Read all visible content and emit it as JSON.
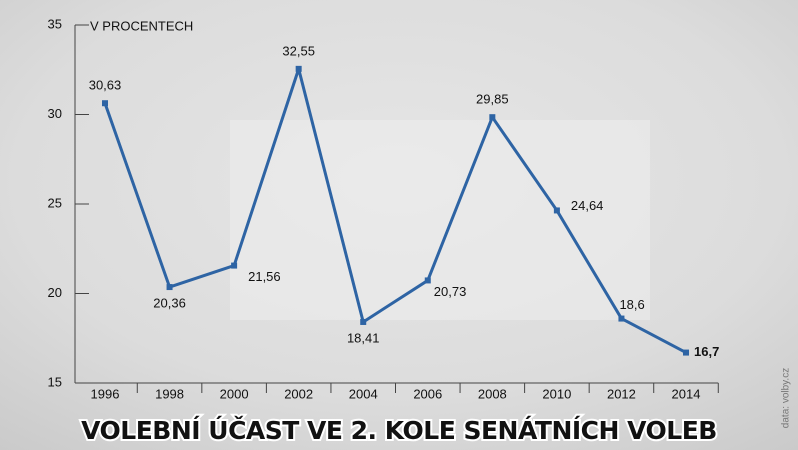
{
  "chart_data": {
    "type": "line",
    "title": "VOLEBNÍ ÚČAST VE 2. KOLE SENÁTNÍCH VOLEB",
    "y_label": "V PROCENTECH",
    "source": "data: volby.cz",
    "categories": [
      "1996",
      "1998",
      "2000",
      "2002",
      "2004",
      "2006",
      "2008",
      "2010",
      "2012",
      "2014"
    ],
    "series": [
      {
        "name": "Volební účast",
        "color": "#2e64a4",
        "values": [
          30.63,
          20.36,
          21.56,
          32.55,
          18.41,
          20.73,
          29.85,
          24.64,
          18.6,
          16.7
        ],
        "value_labels": [
          "30,63",
          "20,36",
          "21,56",
          "32,55",
          "18,41",
          "20,73",
          "29,85",
          "24,64",
          "18,6",
          "16,7"
        ]
      }
    ],
    "ylim": [
      15,
      35
    ],
    "yticks": [
      15,
      20,
      25,
      30,
      35
    ]
  }
}
